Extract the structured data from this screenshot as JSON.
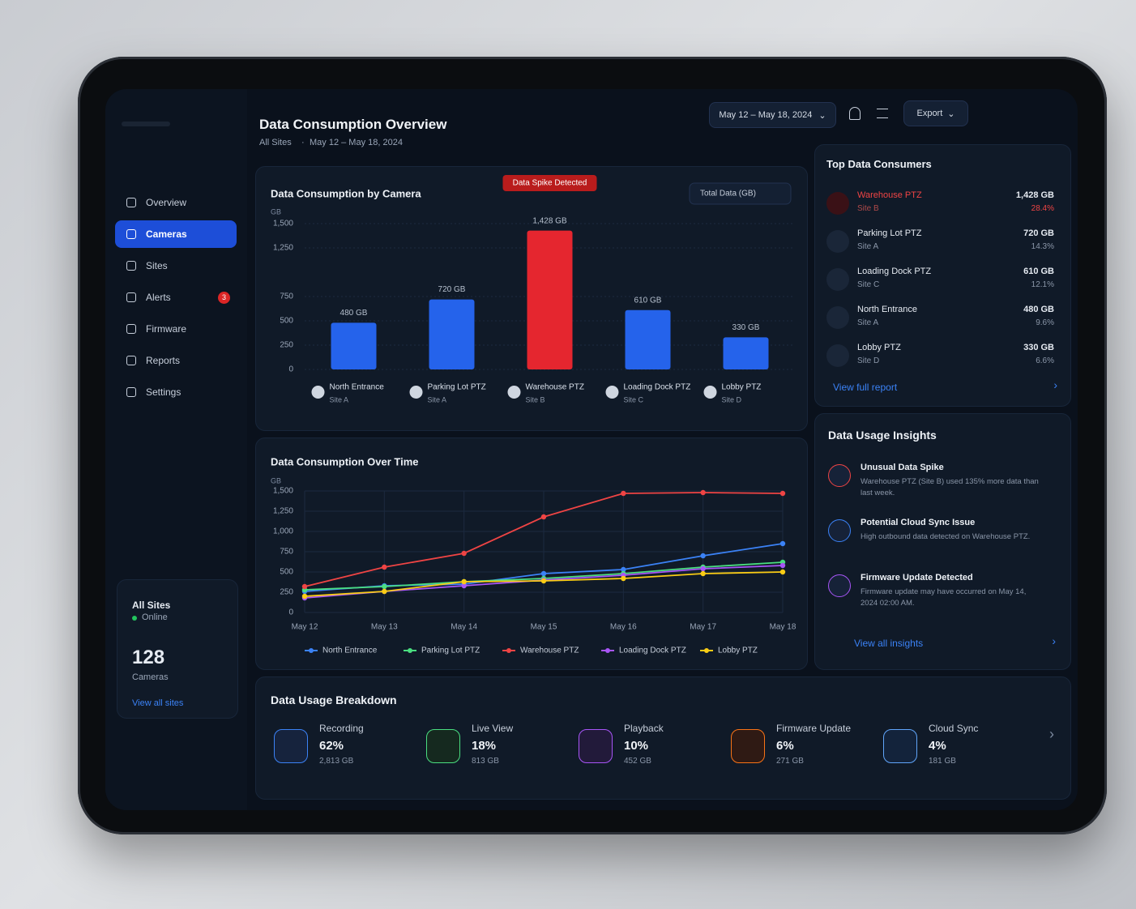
{
  "header": {
    "title": "Data Consumption Overview",
    "scope": "All Sites",
    "range": "May 12 – May 18, 2024",
    "date_button": "May 12 – May 18, 2024",
    "export": "Export"
  },
  "sidebar": {
    "nav": [
      "Overview",
      "Cameras",
      "Sites",
      "Alerts",
      "Firmware",
      "Reports",
      "Settings"
    ],
    "active": "Cameras",
    "alerts_badge": "3",
    "sites_card": {
      "title": "All Sites",
      "status": "Online",
      "count": "128",
      "count_label": "Cameras",
      "link": "View all sites"
    }
  },
  "bar_chart": {
    "type": "bar",
    "title": "Data Consumption by Camera",
    "dropdown": "Total Data (GB)",
    "annotation": "Data Spike Detected",
    "y_unit": "GB",
    "categories": [
      "North Entrance",
      "Parking Lot PTZ",
      "Warehouse PTZ",
      "Loading Dock PTZ",
      "Lobby PTZ"
    ],
    "sites": [
      "Site A",
      "Site A",
      "Site B",
      "Site C",
      "Site D"
    ],
    "values": [
      480,
      720,
      1428,
      610,
      330
    ],
    "value_labels": [
      "480 GB",
      "720 GB",
      "1,428 GB",
      "610 GB",
      "330 GB"
    ],
    "colors": [
      "#2563eb",
      "#2563eb",
      "#e5262f",
      "#2563eb",
      "#2563eb"
    ],
    "ylim": [
      0,
      1500
    ],
    "yticks": [
      0,
      250,
      500,
      750,
      {
        "value": 1250,
        "label": "1,250"
      },
      {
        "value": 1500,
        "label": "1,500"
      }
    ],
    "grid": true
  },
  "line_chart": {
    "type": "line",
    "title": "Data Consumption Over Time",
    "y_unit": "GB",
    "x": [
      "May 12",
      "May 13",
      "May 14",
      "May 15",
      "May 16",
      "May 17",
      "May 18"
    ],
    "series": [
      {
        "name": "North Entrance",
        "color": "#3b82f6",
        "values": [
          260,
          330,
          350,
          480,
          530,
          700,
          850
        ]
      },
      {
        "name": "Parking Lot PTZ",
        "color": "#4ade80",
        "values": [
          280,
          320,
          380,
          420,
          480,
          560,
          620
        ]
      },
      {
        "name": "Warehouse PTZ",
        "color": "#ef4444",
        "values": [
          320,
          560,
          730,
          1180,
          1470,
          1480,
          1470
        ]
      },
      {
        "name": "Loading Dock PTZ",
        "color": "#a855f7",
        "values": [
          180,
          260,
          330,
          400,
          460,
          540,
          580
        ]
      },
      {
        "name": "Lobby PTZ",
        "color": "#facc15",
        "values": [
          200,
          260,
          380,
          390,
          420,
          480,
          500
        ]
      }
    ],
    "ylim": [
      0,
      1500
    ],
    "yticks": [
      0,
      250,
      500,
      750,
      {
        "value": 1000,
        "label": "1,000"
      },
      {
        "value": 1250,
        "label": "1,250"
      },
      {
        "value": 1500,
        "label": "1,500"
      }
    ],
    "grid": true
  },
  "top_consumers": {
    "title": "Top Data Consumers",
    "items": [
      {
        "name": "Warehouse PTZ",
        "site": "Site B",
        "value": "1,428 GB",
        "share": "28.4%"
      },
      {
        "name": "Parking Lot PTZ",
        "site": "Site A",
        "value": "720 GB",
        "share": "14.3%"
      },
      {
        "name": "Loading Dock PTZ",
        "site": "Site C",
        "value": "610 GB",
        "share": "12.1%"
      },
      {
        "name": "North Entrance",
        "site": "Site A",
        "value": "480 GB",
        "share": "9.6%"
      },
      {
        "name": "Lobby PTZ",
        "site": "Site D",
        "value": "330 GB",
        "share": "6.6%"
      }
    ],
    "link": "View full report"
  },
  "insights": {
    "title": "Data Usage Insights",
    "items": [
      {
        "title": "Unusual Data Spike",
        "text": "Warehouse PTZ (Site B) used 135% more data than last week."
      },
      {
        "title": "Potential Cloud Sync Issue",
        "text": "High outbound data detected on Warehouse PTZ."
      },
      {
        "title": "Firmware Update Detected",
        "text": "Firmware update may have occurred on May 14, 2024 02:00 AM."
      }
    ],
    "link": "View all insights"
  },
  "breakdown": {
    "title": "Data Usage Breakdown",
    "items": [
      {
        "label": "Recording",
        "percent": "62%",
        "size": "2,813 GB"
      },
      {
        "label": "Live View",
        "percent": "18%",
        "size": "813 GB"
      },
      {
        "label": "Playback",
        "percent": "10%",
        "size": "452 GB"
      },
      {
        "label": "Firmware Update",
        "percent": "6%",
        "size": "271 GB"
      },
      {
        "label": "Cloud Sync",
        "percent": "4%",
        "size": "181 GB"
      }
    ]
  }
}
